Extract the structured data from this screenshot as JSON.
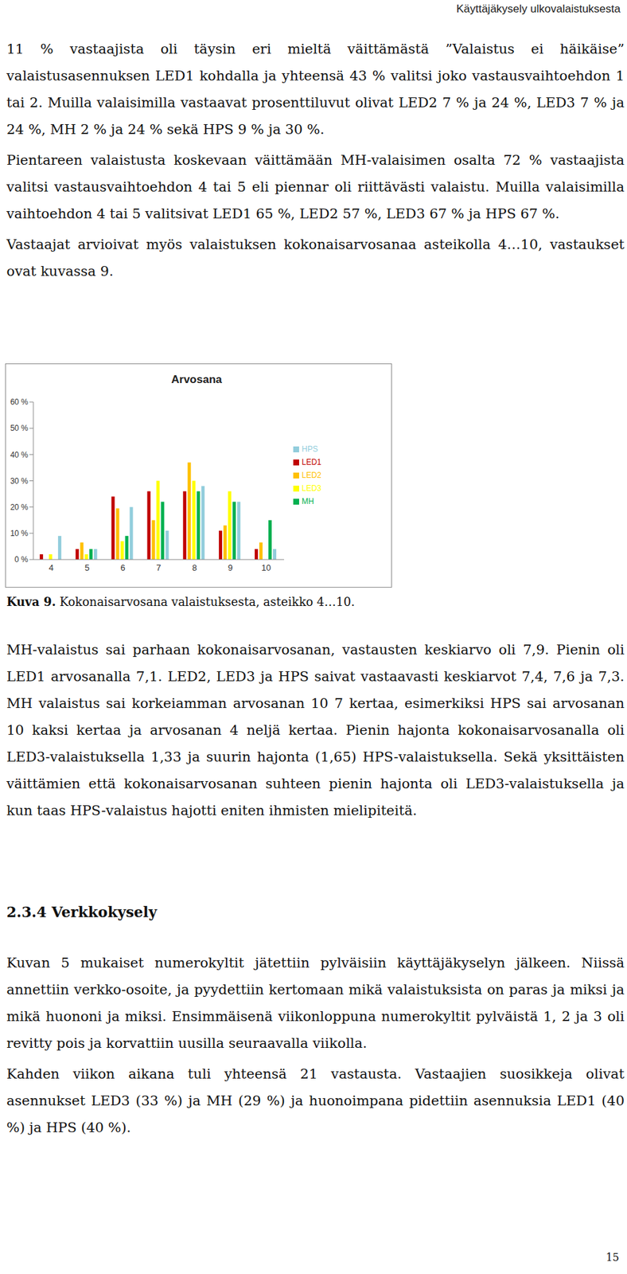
{
  "header": "Käyttäjäkysely ulkovalaistuksesta",
  "paragraphs_before": [
    "11 % vastaajista oli täysin eri mieltä väittämästä ”Valaistus ei häikäise” valaistusasennuksen LED1 kohdalla ja yhteensä 43 % valitsi joko vastausvaihtoehdon 1 tai 2. Muilla valaisimilla vastaavat prosenttiluvut olivat LED2 7 % ja 24 %, LED3 7 % ja 24 %, MH 2 % ja 24 % sekä HPS 9 % ja 30 %.",
    "Pientareen valaistusta koskevaan väittämään MH-valaisimen osalta 72 % vastaajista valitsi vastausvaihtoehdon 4 tai 5 eli piennar oli riittävästi valaistu. Muilla valaisimilla vaihtoehdon 4 tai 5 valitsivat LED1 65 %, LED2 57 %, LED3 67 % ja HPS 67 %.",
    "Vastaajat arvioivat myös valaistuksen kokonaisarvosanaa asteikolla 4…10, vastaukset ovat kuvassa 9."
  ],
  "chart_data": {
    "type": "bar",
    "title": "Arvosana",
    "categories": [
      "4",
      "5",
      "6",
      "7",
      "8",
      "9",
      "10"
    ],
    "series": [
      {
        "name": "LED1",
        "color": "#c00000",
        "values": [
          2,
          4,
          24,
          26,
          26,
          11,
          4
        ]
      },
      {
        "name": "LED2",
        "color": "#ffc000",
        "values": [
          0,
          6.5,
          19.5,
          15,
          37,
          13,
          6.5
        ]
      },
      {
        "name": "LED3",
        "color": "#ffff00",
        "values": [
          2,
          2,
          7,
          30,
          30,
          26,
          0
        ]
      },
      {
        "name": "MH",
        "color": "#00b050",
        "values": [
          0,
          4,
          9,
          22,
          26,
          22,
          15
        ]
      },
      {
        "name": "HPS",
        "color": "#92cddc",
        "values": [
          9,
          4,
          20,
          11,
          28,
          22,
          4
        ]
      }
    ],
    "ylim": [
      0,
      60
    ],
    "yticks": [
      {
        "value": 0,
        "label": "0 %"
      },
      {
        "value": 10,
        "label": "10 %"
      },
      {
        "value": 20,
        "label": "20 %"
      },
      {
        "value": 30,
        "label": "30 %"
      },
      {
        "value": 40,
        "label": "40 %"
      },
      {
        "value": 50,
        "label": "50 %"
      },
      {
        "value": 60,
        "label": "60 %"
      }
    ],
    "grid": false,
    "legend": "right"
  },
  "caption": {
    "label": "Kuva 9.",
    "text": "Kokonaisarvosana valaistuksesta, asteikko 4…10."
  },
  "paragraphs_after": [
    "MH-valaistus sai parhaan kokonaisarvosanan, vastausten keskiarvo oli 7,9. Pienin oli LED1 arvosanalla 7,1. LED2, LED3 ja HPS saivat vastaavasti keskiarvot 7,4, 7,6 ja 7,3. MH valaistus sai korkeiamman arvosanan 10 7 kertaa, esimerkiksi HPS sai arvosanan 10 kaksi kertaa ja arvosanan 4 neljä kertaa. Pienin hajonta kokonaisarvosanalla oli LED3-valaistuksella 1,33 ja suurin hajonta (1,65) HPS-valaistuksella. Sekä yksittäisten väittämien että kokonaisarvosanan suhteen pienin hajonta oli LED3-valaistuksella ja kun taas HPS-valaistus hajotti eniten ihmisten mielipiteitä."
  ],
  "section": {
    "heading": "2.3.4 Verkkokysely",
    "paragraphs": [
      "Kuvan 5 mukaiset numerokyltit jätettiin pylväisiin käyttäjäkyselyn jälkeen. Niissä annettiin verkko-osoite, ja pyydettiin kertomaan mikä valaistuksista on paras ja miksi ja mikä huononi ja miksi. Ensimmäisenä viikonloppuna numerokyltit pylväistä 1, 2 ja 3 oli revitty pois ja korvattiin uusilla seuraavalla viikolla.",
      "Kahden viikon aikana tuli yhteensä 21 vastausta. Vastaajien suosikkeja olivat asennukset LED3 (33 %) ja MH (29 %) ja huonoimpana pidettiin asennuksia LED1 (40 %) ja HPS (40 %)."
    ]
  },
  "page_number": "15"
}
